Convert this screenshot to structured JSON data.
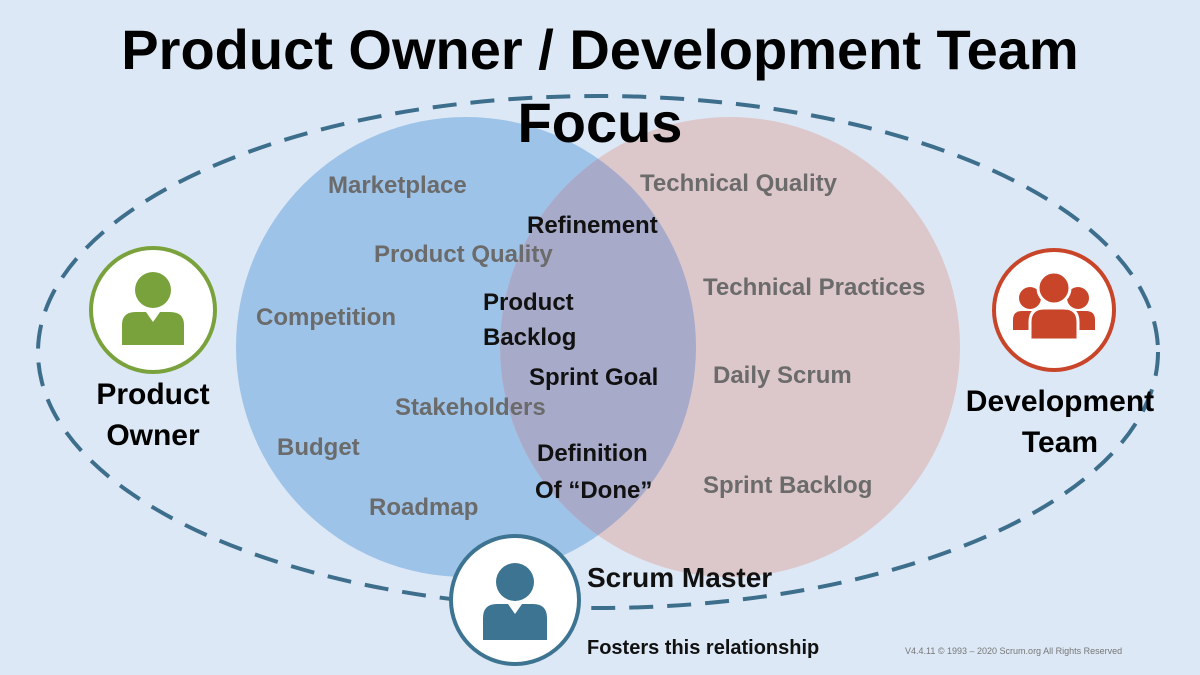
{
  "title": {
    "line1": "Product Owner / Development Team",
    "line2": "Focus"
  },
  "product_owner_items": [
    "Marketplace",
    "Product Quality",
    "Competition",
    "Stakeholders",
    "Budget",
    "Roadmap"
  ],
  "shared_items": {
    "refinement": "Refinement",
    "product_backlog_1": "Product",
    "product_backlog_2": "Backlog",
    "sprint_goal": "Sprint Goal",
    "definition_of_done_1": "Definition",
    "definition_of_done_2": "Of “Done”"
  },
  "development_team_items": [
    "Technical Quality",
    "Technical Practices",
    "Daily Scrum",
    "Sprint Backlog"
  ],
  "roles": {
    "product_owner_1": "Product",
    "product_owner_2": "Owner",
    "development_team_1": "Development",
    "development_team_2": "Team",
    "scrum_master": "Scrum Master",
    "scrum_master_note": "Fosters this relationship"
  },
  "footer": {
    "version": "V4.4.11",
    "copyright": "© 1993 – 2020 Scrum.org All Rights Reserved"
  },
  "colors": {
    "background": "#dce8f5",
    "po_circle": "#9ec3e8",
    "dev_circle": "#dcc8cb",
    "overlap": "#a7abc9",
    "dashed_ellipse": "#3d6e8c",
    "po_icon": "#7aa23c",
    "dev_icon": "#c8452a",
    "sm_icon": "#3d7491"
  },
  "icons": {
    "product_owner": "person-icon",
    "development_team": "group-icon",
    "scrum_master": "person-icon"
  }
}
